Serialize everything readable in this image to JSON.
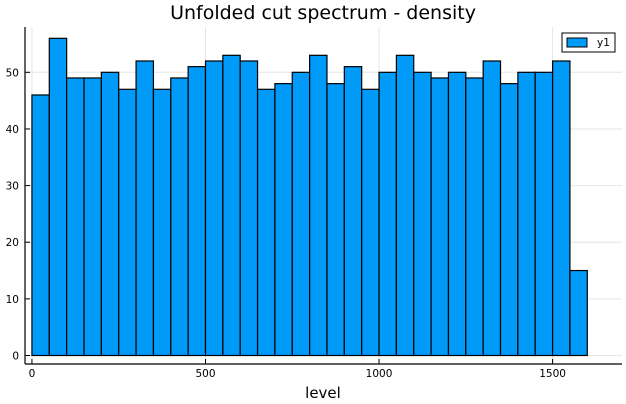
{
  "chart_data": {
    "type": "bar",
    "title": "Unfolded cut spectrum - density",
    "xlabel": "level",
    "ylabel": "",
    "xlim": [
      -20,
      1700
    ],
    "ylim": [
      -1.5,
      58
    ],
    "bin_width": 50,
    "bin_edges": [
      0,
      50,
      100,
      150,
      200,
      250,
      300,
      350,
      400,
      450,
      500,
      550,
      600,
      650,
      700,
      750,
      800,
      850,
      900,
      950,
      1000,
      1050,
      1100,
      1150,
      1200,
      1250,
      1300,
      1350,
      1400,
      1450,
      1500,
      1550,
      1600
    ],
    "series": [
      {
        "name": "y1",
        "color": "#009af9",
        "values": [
          46,
          56,
          49,
          49,
          50,
          47,
          52,
          47,
          49,
          51,
          52,
          53,
          52,
          47,
          48,
          50,
          53,
          48,
          51,
          47,
          50,
          53,
          50,
          49,
          50,
          49,
          52,
          48,
          50,
          50,
          52,
          15
        ]
      }
    ],
    "x_ticks": [
      0,
      500,
      1000,
      1500
    ],
    "y_ticks": [
      0,
      10,
      20,
      30,
      40,
      50
    ],
    "grid": true,
    "legend": {
      "position": "top-right",
      "entries": [
        "y1"
      ]
    }
  }
}
